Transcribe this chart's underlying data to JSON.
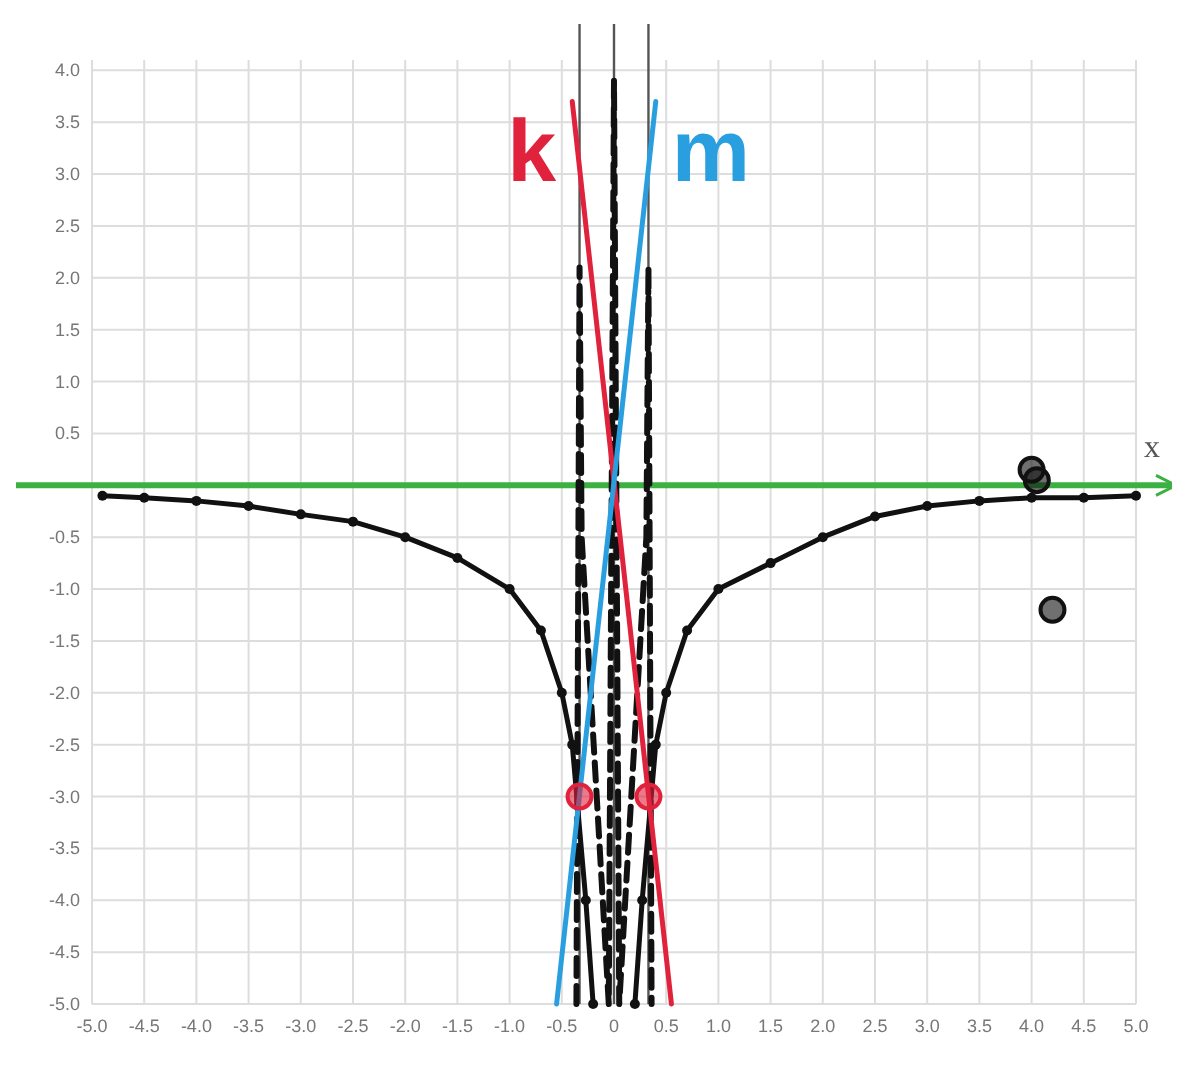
{
  "chart_data": {
    "type": "line",
    "xlabel": "x",
    "xlim": [
      -5,
      5
    ],
    "ylim": [
      -5,
      4.1
    ],
    "xticks": [
      {
        "value": -5,
        "label": "-5.0"
      },
      {
        "value": -4.5,
        "label": "-4.5"
      },
      {
        "value": -4,
        "label": "-4.0"
      },
      {
        "value": -3.5,
        "label": "-3.5"
      },
      {
        "value": -3,
        "label": "-3.0"
      },
      {
        "value": -2.5,
        "label": "-2.5"
      },
      {
        "value": -2,
        "label": "-2.0"
      },
      {
        "value": -1.5,
        "label": "-1.5"
      },
      {
        "value": -1,
        "label": "-1.0"
      },
      {
        "value": -0.5,
        "label": "-0.5"
      },
      0,
      {
        "value": 0.5,
        "label": "0.5"
      },
      {
        "value": 1,
        "label": "1.0"
      },
      {
        "value": 1.5,
        "label": "1.5"
      },
      {
        "value": 2,
        "label": "2.0"
      },
      {
        "value": 2.5,
        "label": "2.5"
      },
      {
        "value": 3,
        "label": "3.0"
      },
      {
        "value": 3.5,
        "label": "3.5"
      },
      {
        "value": 4,
        "label": "4.0"
      },
      {
        "value": 4.5,
        "label": "4.5"
      },
      {
        "value": 5,
        "label": "5.0"
      }
    ],
    "yticks": [
      {
        "value": -5,
        "label": "-5.0"
      },
      {
        "value": -4.5,
        "label": "-4.5"
      },
      {
        "value": -4,
        "label": "-4.0"
      },
      {
        "value": -3.5,
        "label": "-3.5"
      },
      {
        "value": -3,
        "label": "-3.0"
      },
      {
        "value": -2.5,
        "label": "-2.5"
      },
      {
        "value": -2,
        "label": "-2.0"
      },
      {
        "value": -1.5,
        "label": "-1.5"
      },
      {
        "value": -1,
        "label": "-1.0"
      },
      {
        "value": -0.5,
        "label": "-0.5"
      },
      {
        "value": 0,
        "label": null
      },
      {
        "value": 0.5,
        "label": "0.5"
      },
      {
        "value": 1,
        "label": "1.0"
      },
      {
        "value": 1.5,
        "label": "1.5"
      },
      {
        "value": 2,
        "label": "2.0"
      },
      {
        "value": 2.5,
        "label": "2.5"
      },
      {
        "value": 3,
        "label": "3.0"
      },
      {
        "value": 3.5,
        "label": "3.5"
      },
      {
        "value": 4,
        "label": "4.0"
      }
    ],
    "grid": true,
    "ref_lines": [
      {
        "axis": "y",
        "value": 0,
        "color": "#3cb043"
      },
      {
        "axis": "x",
        "value": 0,
        "color": "#555555"
      },
      {
        "axis": "x",
        "value": -0.33,
        "color": "#555555"
      },
      {
        "axis": "x",
        "value": 0.33,
        "color": "#555555"
      }
    ],
    "series": [
      {
        "color": "#111111",
        "marker": "circle",
        "x": [
          -4.9,
          -4.5,
          -4,
          -3.5,
          -3,
          -2.5,
          -2,
          -1.5,
          -1,
          -0.7,
          -0.5,
          -0.4,
          -0.27,
          -0.2
        ],
        "values": [
          -0.1,
          -0.12,
          -0.15,
          -0.2,
          -0.28,
          -0.35,
          -0.5,
          -0.7,
          -1,
          -1.4,
          -2,
          -2.5,
          -4,
          -5
        ]
      },
      {
        "color": "#111111",
        "marker": "circle",
        "x": [
          0.2,
          0.27,
          0.4,
          0.5,
          0.7,
          1,
          1.5,
          2,
          2.5,
          3,
          3.5,
          4,
          4.5,
          5
        ],
        "values": [
          -5,
          -4,
          -2.5,
          -2,
          -1.4,
          -1,
          -0.75,
          -0.5,
          -0.3,
          -0.2,
          -0.15,
          -0.12,
          -0.12,
          -0.1
        ]
      },
      {
        "color": "#111111",
        "line_style": "dashed",
        "x": [
          -0.36,
          -0.33,
          -0.31,
          -0.05,
          0,
          0.05,
          0.31,
          0.33,
          0.36
        ],
        "values": [
          -5,
          2.1,
          -0.5,
          -5,
          3.9,
          -5,
          -0.5,
          2.1,
          -5
        ]
      },
      {
        "name": "k",
        "color": "#e0223c",
        "x": [
          -0.4,
          0.55
        ],
        "values": [
          3.7,
          -5
        ]
      },
      {
        "name": "m",
        "color": "#2a9fe0",
        "x": [
          -0.55,
          0.4
        ],
        "values": [
          -5,
          3.7
        ]
      },
      {
        "type": "scatter",
        "color": "#e0223c",
        "marker": "circle",
        "x": [
          -0.33,
          0.33
        ],
        "values": [
          -3,
          -3
        ]
      },
      {
        "type": "scatter",
        "color": "#111111",
        "marker": "circle",
        "x": [
          4,
          4.05,
          4.2
        ],
        "values": [
          0.15,
          0.05,
          -1.2
        ]
      }
    ]
  }
}
